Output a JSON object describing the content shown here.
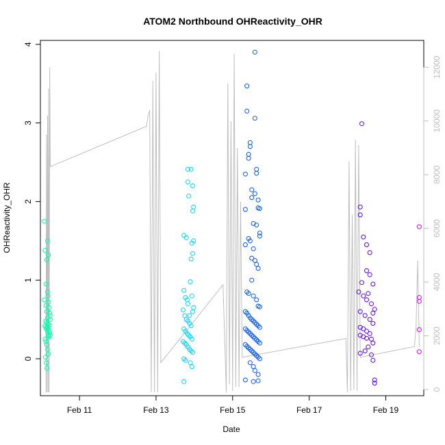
{
  "chart_data": {
    "type": "scatter",
    "title": "ATOM2 Northbound OHReactivity_OHR",
    "xlabel": "Date",
    "ylabel": "OHReactivity_OHR",
    "x_ticks": [
      "Feb 11",
      "Feb 13",
      "Feb 15",
      "Feb 17",
      "Feb 19"
    ],
    "y_ticks": [
      "0",
      "1",
      "2",
      "3",
      "4"
    ],
    "y2_ticks": [
      "0",
      "2000",
      "4000",
      "6000",
      "8000",
      "10000",
      "12000"
    ],
    "xlim": [
      "2020-02-09T23:30",
      "2020-02-19T23:50"
    ],
    "ylim": [
      -0.47,
      4.05
    ],
    "y2lim": [
      -230,
      13000
    ],
    "grid": false,
    "legend": "none",
    "colors": {
      "scatter_ramp": [
        "#00ffaa",
        "#00d5ff",
        "#0055ff",
        "#2a00ff",
        "#5500ff",
        "#d500ff"
      ],
      "secondary_line": "#bebebe",
      "axis": "#000000",
      "secondary_axis": "#bebebe"
    },
    "secondary_line": {
      "description": "grey line on secondary right axis",
      "points": [
        [
          "2020-02-10T03:00",
          -100
        ],
        [
          "2020-02-10T03:20",
          9500
        ],
        [
          "2020-02-10T03:40",
          -100
        ],
        [
          "2020-02-10T04:00",
          10200
        ],
        [
          "2020-02-10T04:20",
          -100
        ],
        [
          "2020-02-10T04:40",
          11200
        ],
        [
          "2020-02-10T05:00",
          -100
        ],
        [
          "2020-02-10T05:20",
          12000
        ],
        [
          "2020-02-10T05:40",
          8300
        ],
        [
          "2020-02-12T18:00",
          9800
        ],
        [
          "2020-02-12T19:00",
          10200
        ],
        [
          "2020-02-12T20:00",
          10400
        ],
        [
          "2020-02-12T21:00",
          -100
        ],
        [
          "2020-02-12T22:00",
          11500
        ],
        [
          "2020-02-12T23:00",
          -100
        ],
        [
          "2020-02-13T00:00",
          11800
        ],
        [
          "2020-02-13T01:00",
          -100
        ],
        [
          "2020-02-13T02:00",
          12600
        ],
        [
          "2020-02-13T03:00",
          1000
        ],
        [
          "2020-02-14T18:00",
          3900
        ],
        [
          "2020-02-14T20:00",
          -100
        ],
        [
          "2020-02-14T21:00",
          11400
        ],
        [
          "2020-02-14T22:00",
          200
        ],
        [
          "2020-02-14T23:00",
          10000
        ],
        [
          "2020-02-15T00:00",
          -50
        ],
        [
          "2020-02-15T01:00",
          12500
        ],
        [
          "2020-02-15T02:00",
          100
        ],
        [
          "2020-02-15T03:00",
          9000
        ],
        [
          "2020-02-15T04:00",
          100
        ],
        [
          "2020-02-15T05:00",
          7000
        ],
        [
          "2020-02-15T06:00",
          1200
        ],
        [
          "2020-02-17T23:00",
          1900
        ],
        [
          "2020-02-18T00:00",
          -100
        ],
        [
          "2020-02-18T01:00",
          8500
        ],
        [
          "2020-02-18T02:00",
          -50
        ],
        [
          "2020-02-18T03:00",
          6500
        ],
        [
          "2020-02-18T04:00",
          0
        ],
        [
          "2020-02-18T05:00",
          9300
        ],
        [
          "2020-02-18T06:00",
          -50
        ],
        [
          "2020-02-18T07:00",
          9100
        ],
        [
          "2020-02-18T08:00",
          1200
        ],
        [
          "2020-02-19T18:00",
          1600
        ],
        [
          "2020-02-19T19:00",
          2300
        ],
        [
          "2020-02-19T20:00",
          4800
        ],
        [
          "2020-02-19T21:00",
          1600
        ]
      ]
    },
    "series": [
      {
        "color": "#00ffaa",
        "points": [
          [
            "2020-02-10T02:00",
            1.75
          ],
          [
            "2020-02-10T02:30",
            1.38
          ],
          [
            "2020-02-10T03:00",
            0.95
          ],
          [
            "2020-02-10T03:30",
            1.26
          ],
          [
            "2020-02-10T04:00",
            1.5
          ],
          [
            "2020-02-10T04:30",
            1.32
          ],
          [
            "2020-02-10T03:00",
            0.68
          ],
          [
            "2020-02-10T03:30",
            0.6
          ],
          [
            "2020-02-10T04:00",
            0.52
          ],
          [
            "2020-02-10T04:30",
            0.44
          ],
          [
            "2020-02-10T02:20",
            0.42
          ],
          [
            "2020-02-10T02:50",
            0.4
          ],
          [
            "2020-02-10T03:20",
            0.38
          ],
          [
            "2020-02-10T03:50",
            0.35
          ],
          [
            "2020-02-10T04:20",
            0.3
          ],
          [
            "2020-02-10T04:50",
            0.28
          ],
          [
            "2020-02-10T02:30",
            0.25
          ],
          [
            "2020-02-10T03:00",
            0.22
          ],
          [
            "2020-02-10T03:30",
            0.18
          ],
          [
            "2020-02-10T04:00",
            0.12
          ],
          [
            "2020-02-10T04:30",
            0.06
          ],
          [
            "2020-02-10T02:40",
            0.02
          ],
          [
            "2020-02-10T03:10",
            -0.05
          ],
          [
            "2020-02-10T03:40",
            -0.12
          ],
          [
            "2020-02-10T04:10",
            0.8
          ],
          [
            "2020-02-10T04:40",
            0.72
          ],
          [
            "2020-02-10T05:00",
            0.65
          ],
          [
            "2020-02-10T05:20",
            0.58
          ],
          [
            "2020-02-10T05:40",
            0.55
          ],
          [
            "2020-02-10T02:50",
            0.48
          ],
          [
            "2020-02-10T03:20",
            0.46
          ],
          [
            "2020-02-10T03:50",
            0.41
          ],
          [
            "2020-02-10T04:20",
            0.39
          ],
          [
            "2020-02-10T04:50",
            0.36
          ],
          [
            "2020-02-10T05:20",
            0.33
          ],
          [
            "2020-02-10T05:40",
            0.3
          ],
          [
            "2020-02-10T02:00",
            0.75
          ],
          [
            "2020-02-10T04:00",
            0.85
          ],
          [
            "2020-02-10T05:40",
            0.5
          ],
          [
            "2020-02-10T05:10",
            0.43
          ]
        ]
      },
      {
        "color": "#00d5ff",
        "points": [
          [
            "2020-02-13T17:30",
            1.57
          ],
          [
            "2020-02-13T19:00",
            1.54
          ],
          [
            "2020-02-13T20:00",
            2.41
          ],
          [
            "2020-02-13T20:00",
            2.25
          ],
          [
            "2020-02-13T20:30",
            2.07
          ],
          [
            "2020-02-13T22:00",
            2.41
          ],
          [
            "2020-02-13T23:00",
            2.2
          ],
          [
            "2020-02-13T23:30",
            1.93
          ],
          [
            "2020-02-13T23:00",
            1.88
          ],
          [
            "2020-02-13T22:30",
            1.47
          ],
          [
            "2020-02-13T23:30",
            1.5
          ],
          [
            "2020-02-13T22:00",
            1.27
          ],
          [
            "2020-02-13T23:00",
            1.34
          ],
          [
            "2020-02-13T21:30",
            0.98
          ],
          [
            "2020-02-13T17:30",
            0.87
          ],
          [
            "2020-02-13T18:30",
            0.78
          ],
          [
            "2020-02-13T20:00",
            0.7
          ],
          [
            "2020-02-13T22:30",
            0.8
          ],
          [
            "2020-02-13T17:00",
            0.62
          ],
          [
            "2020-02-13T18:00",
            0.55
          ],
          [
            "2020-02-13T19:00",
            0.5
          ],
          [
            "2020-02-13T20:00",
            0.48
          ],
          [
            "2020-02-13T21:00",
            0.45
          ],
          [
            "2020-02-13T22:00",
            0.42
          ],
          [
            "2020-02-13T17:30",
            0.38
          ],
          [
            "2020-02-13T18:30",
            0.35
          ],
          [
            "2020-02-13T19:30",
            0.32
          ],
          [
            "2020-02-13T20:30",
            0.3
          ],
          [
            "2020-02-13T21:30",
            0.28
          ],
          [
            "2020-02-13T22:30",
            0.25
          ],
          [
            "2020-02-13T17:00",
            0.22
          ],
          [
            "2020-02-13T18:00",
            0.2
          ],
          [
            "2020-02-13T19:00",
            0.18
          ],
          [
            "2020-02-13T20:00",
            0.15
          ],
          [
            "2020-02-13T21:00",
            0.12
          ],
          [
            "2020-02-13T22:00",
            0.1
          ],
          [
            "2020-02-13T23:00",
            0.08
          ],
          [
            "2020-02-13T17:30",
            0.0
          ],
          [
            "2020-02-13T18:30",
            -0.02
          ],
          [
            "2020-02-13T21:30",
            -0.05
          ],
          [
            "2020-02-13T22:30",
            -0.1
          ],
          [
            "2020-02-13T17:30",
            -0.29
          ],
          [
            "2020-02-13T23:00",
            0.6
          ],
          [
            "2020-02-13T23:30",
            0.65
          ],
          [
            "2020-02-13T21:00",
            0.55
          ],
          [
            "2020-02-13T19:30",
            0.75
          ]
        ]
      },
      {
        "color": "#0055ff",
        "points": [
          [
            "2020-02-15T14:00",
            3.9
          ],
          [
            "2020-02-15T09:00",
            3.47
          ],
          [
            "2020-02-15T09:00",
            3.15
          ],
          [
            "2020-02-15T14:00",
            3.06
          ],
          [
            "2020-02-15T11:00",
            2.75
          ],
          [
            "2020-02-15T11:00",
            2.7
          ],
          [
            "2020-02-15T10:00",
            2.6
          ],
          [
            "2020-02-15T10:00",
            2.55
          ],
          [
            "2020-02-15T15:00",
            2.41
          ],
          [
            "2020-02-15T15:00",
            2.36
          ],
          [
            "2020-02-15T08:00",
            2.35
          ],
          [
            "2020-02-15T12:00",
            2.15
          ],
          [
            "2020-02-15T14:00",
            2.1
          ],
          [
            "2020-02-15T12:00",
            2.05
          ],
          [
            "2020-02-15T16:00",
            2.02
          ],
          [
            "2020-02-15T08:00",
            1.9
          ],
          [
            "2020-02-15T16:00",
            1.92
          ],
          [
            "2020-02-15T17:00",
            1.91
          ],
          [
            "2020-02-15T13:00",
            1.72
          ],
          [
            "2020-02-15T15:00",
            1.7
          ],
          [
            "2020-02-15T17:00",
            1.6
          ],
          [
            "2020-02-15T17:00",
            1.56
          ],
          [
            "2020-02-15T10:00",
            1.53
          ],
          [
            "2020-02-15T11:00",
            1.5
          ],
          [
            "2020-02-15T08:00",
            1.45
          ],
          [
            "2020-02-15T13:00",
            1.4
          ],
          [
            "2020-02-15T12:00",
            1.28
          ],
          [
            "2020-02-15T14:00",
            1.25
          ],
          [
            "2020-02-15T15:00",
            1.2
          ],
          [
            "2020-02-15T16:00",
            1.15
          ],
          [
            "2020-02-15T12:00",
            1.0
          ],
          [
            "2020-02-15T09:00",
            0.85
          ],
          [
            "2020-02-15T10:00",
            0.83
          ],
          [
            "2020-02-15T13:00",
            0.8
          ],
          [
            "2020-02-15T15:00",
            0.75
          ],
          [
            "2020-02-15T16:00",
            0.67
          ],
          [
            "2020-02-15T17:00",
            0.66
          ],
          [
            "2020-02-15T08:00",
            0.6
          ],
          [
            "2020-02-15T09:00",
            0.58
          ],
          [
            "2020-02-15T10:00",
            0.55
          ],
          [
            "2020-02-15T11:00",
            0.52
          ],
          [
            "2020-02-15T12:00",
            0.5
          ],
          [
            "2020-02-15T13:00",
            0.48
          ],
          [
            "2020-02-15T14:00",
            0.46
          ],
          [
            "2020-02-15T15:00",
            0.44
          ],
          [
            "2020-02-15T16:00",
            0.42
          ],
          [
            "2020-02-15T17:00",
            0.4
          ],
          [
            "2020-02-15T08:00",
            0.38
          ],
          [
            "2020-02-15T09:00",
            0.36
          ],
          [
            "2020-02-15T10:00",
            0.34
          ],
          [
            "2020-02-15T11:00",
            0.32
          ],
          [
            "2020-02-15T12:00",
            0.3
          ],
          [
            "2020-02-15T13:00",
            0.28
          ],
          [
            "2020-02-15T14:00",
            0.26
          ],
          [
            "2020-02-15T15:00",
            0.24
          ],
          [
            "2020-02-15T16:00",
            0.22
          ],
          [
            "2020-02-15T17:00",
            0.2
          ],
          [
            "2020-02-15T08:00",
            0.18
          ],
          [
            "2020-02-15T09:00",
            0.16
          ],
          [
            "2020-02-15T10:00",
            0.14
          ],
          [
            "2020-02-15T11:00",
            0.12
          ],
          [
            "2020-02-15T12:00",
            0.1
          ],
          [
            "2020-02-15T13:00",
            0.08
          ],
          [
            "2020-02-15T14:00",
            0.06
          ],
          [
            "2020-02-15T15:00",
            0.04
          ],
          [
            "2020-02-15T16:00",
            0.02
          ],
          [
            "2020-02-15T17:00",
            0.0
          ],
          [
            "2020-02-15T11:00",
            -0.05
          ],
          [
            "2020-02-15T13:00",
            -0.1
          ],
          [
            "2020-02-15T14:00",
            -0.15
          ],
          [
            "2020-02-15T16:00",
            -0.2
          ],
          [
            "2020-02-15T08:00",
            -0.27
          ],
          [
            "2020-02-15T13:00",
            -0.29
          ],
          [
            "2020-02-15T16:00",
            -0.28
          ]
        ]
      },
      {
        "color": "#5500ff",
        "points": [
          [
            "2020-02-18T09:00",
            2.99
          ],
          [
            "2020-02-18T08:00",
            1.93
          ],
          [
            "2020-02-18T08:00",
            1.83
          ],
          [
            "2020-02-18T10:00",
            1.55
          ],
          [
            "2020-02-18T12:00",
            1.45
          ],
          [
            "2020-02-18T14:00",
            1.35
          ],
          [
            "2020-02-18T12:00",
            1.12
          ],
          [
            "2020-02-18T14:00",
            1.07
          ],
          [
            "2020-02-18T09:00",
            0.97
          ],
          [
            "2020-02-18T16:00",
            0.95
          ],
          [
            "2020-02-18T07:00",
            0.85
          ],
          [
            "2020-02-18T13:00",
            0.83
          ],
          [
            "2020-02-18T10:00",
            0.8
          ],
          [
            "2020-02-18T12:00",
            0.75
          ],
          [
            "2020-02-18T15:00",
            0.7
          ],
          [
            "2020-02-18T17:00",
            0.63
          ],
          [
            "2020-02-18T08:00",
            0.6
          ],
          [
            "2020-02-18T11:00",
            0.55
          ],
          [
            "2020-02-18T14:00",
            0.5
          ],
          [
            "2020-02-18T16:00",
            0.45
          ],
          [
            "2020-02-18T08:00",
            0.4
          ],
          [
            "2020-02-18T10:00",
            0.38
          ],
          [
            "2020-02-18T12:00",
            0.35
          ],
          [
            "2020-02-18T14:00",
            0.32
          ],
          [
            "2020-02-18T08:00",
            0.3
          ],
          [
            "2020-02-18T10:00",
            0.28
          ],
          [
            "2020-02-18T12:00",
            0.26
          ],
          [
            "2020-02-18T15:00",
            0.25
          ],
          [
            "2020-02-18T16:00",
            0.2
          ],
          [
            "2020-02-18T13:00",
            0.15
          ],
          [
            "2020-02-18T11:00",
            0.1
          ],
          [
            "2020-02-18T08:00",
            0.07
          ],
          [
            "2020-02-18T15:00",
            0.05
          ],
          [
            "2020-02-18T16:00",
            -0.02
          ],
          [
            "2020-02-18T17:00",
            -0.27
          ],
          [
            "2020-02-18T17:00",
            -0.31
          ],
          [
            "2020-02-18T16:00",
            0.58
          ]
        ]
      },
      {
        "color": "#d500ff",
        "points": [
          [
            "2020-02-19T21:00",
            1.68
          ],
          [
            "2020-02-19T21:00",
            0.78
          ],
          [
            "2020-02-19T21:00",
            0.73
          ],
          [
            "2020-02-19T21:00",
            0.37
          ],
          [
            "2020-02-19T21:00",
            0.09
          ]
        ]
      }
    ]
  }
}
